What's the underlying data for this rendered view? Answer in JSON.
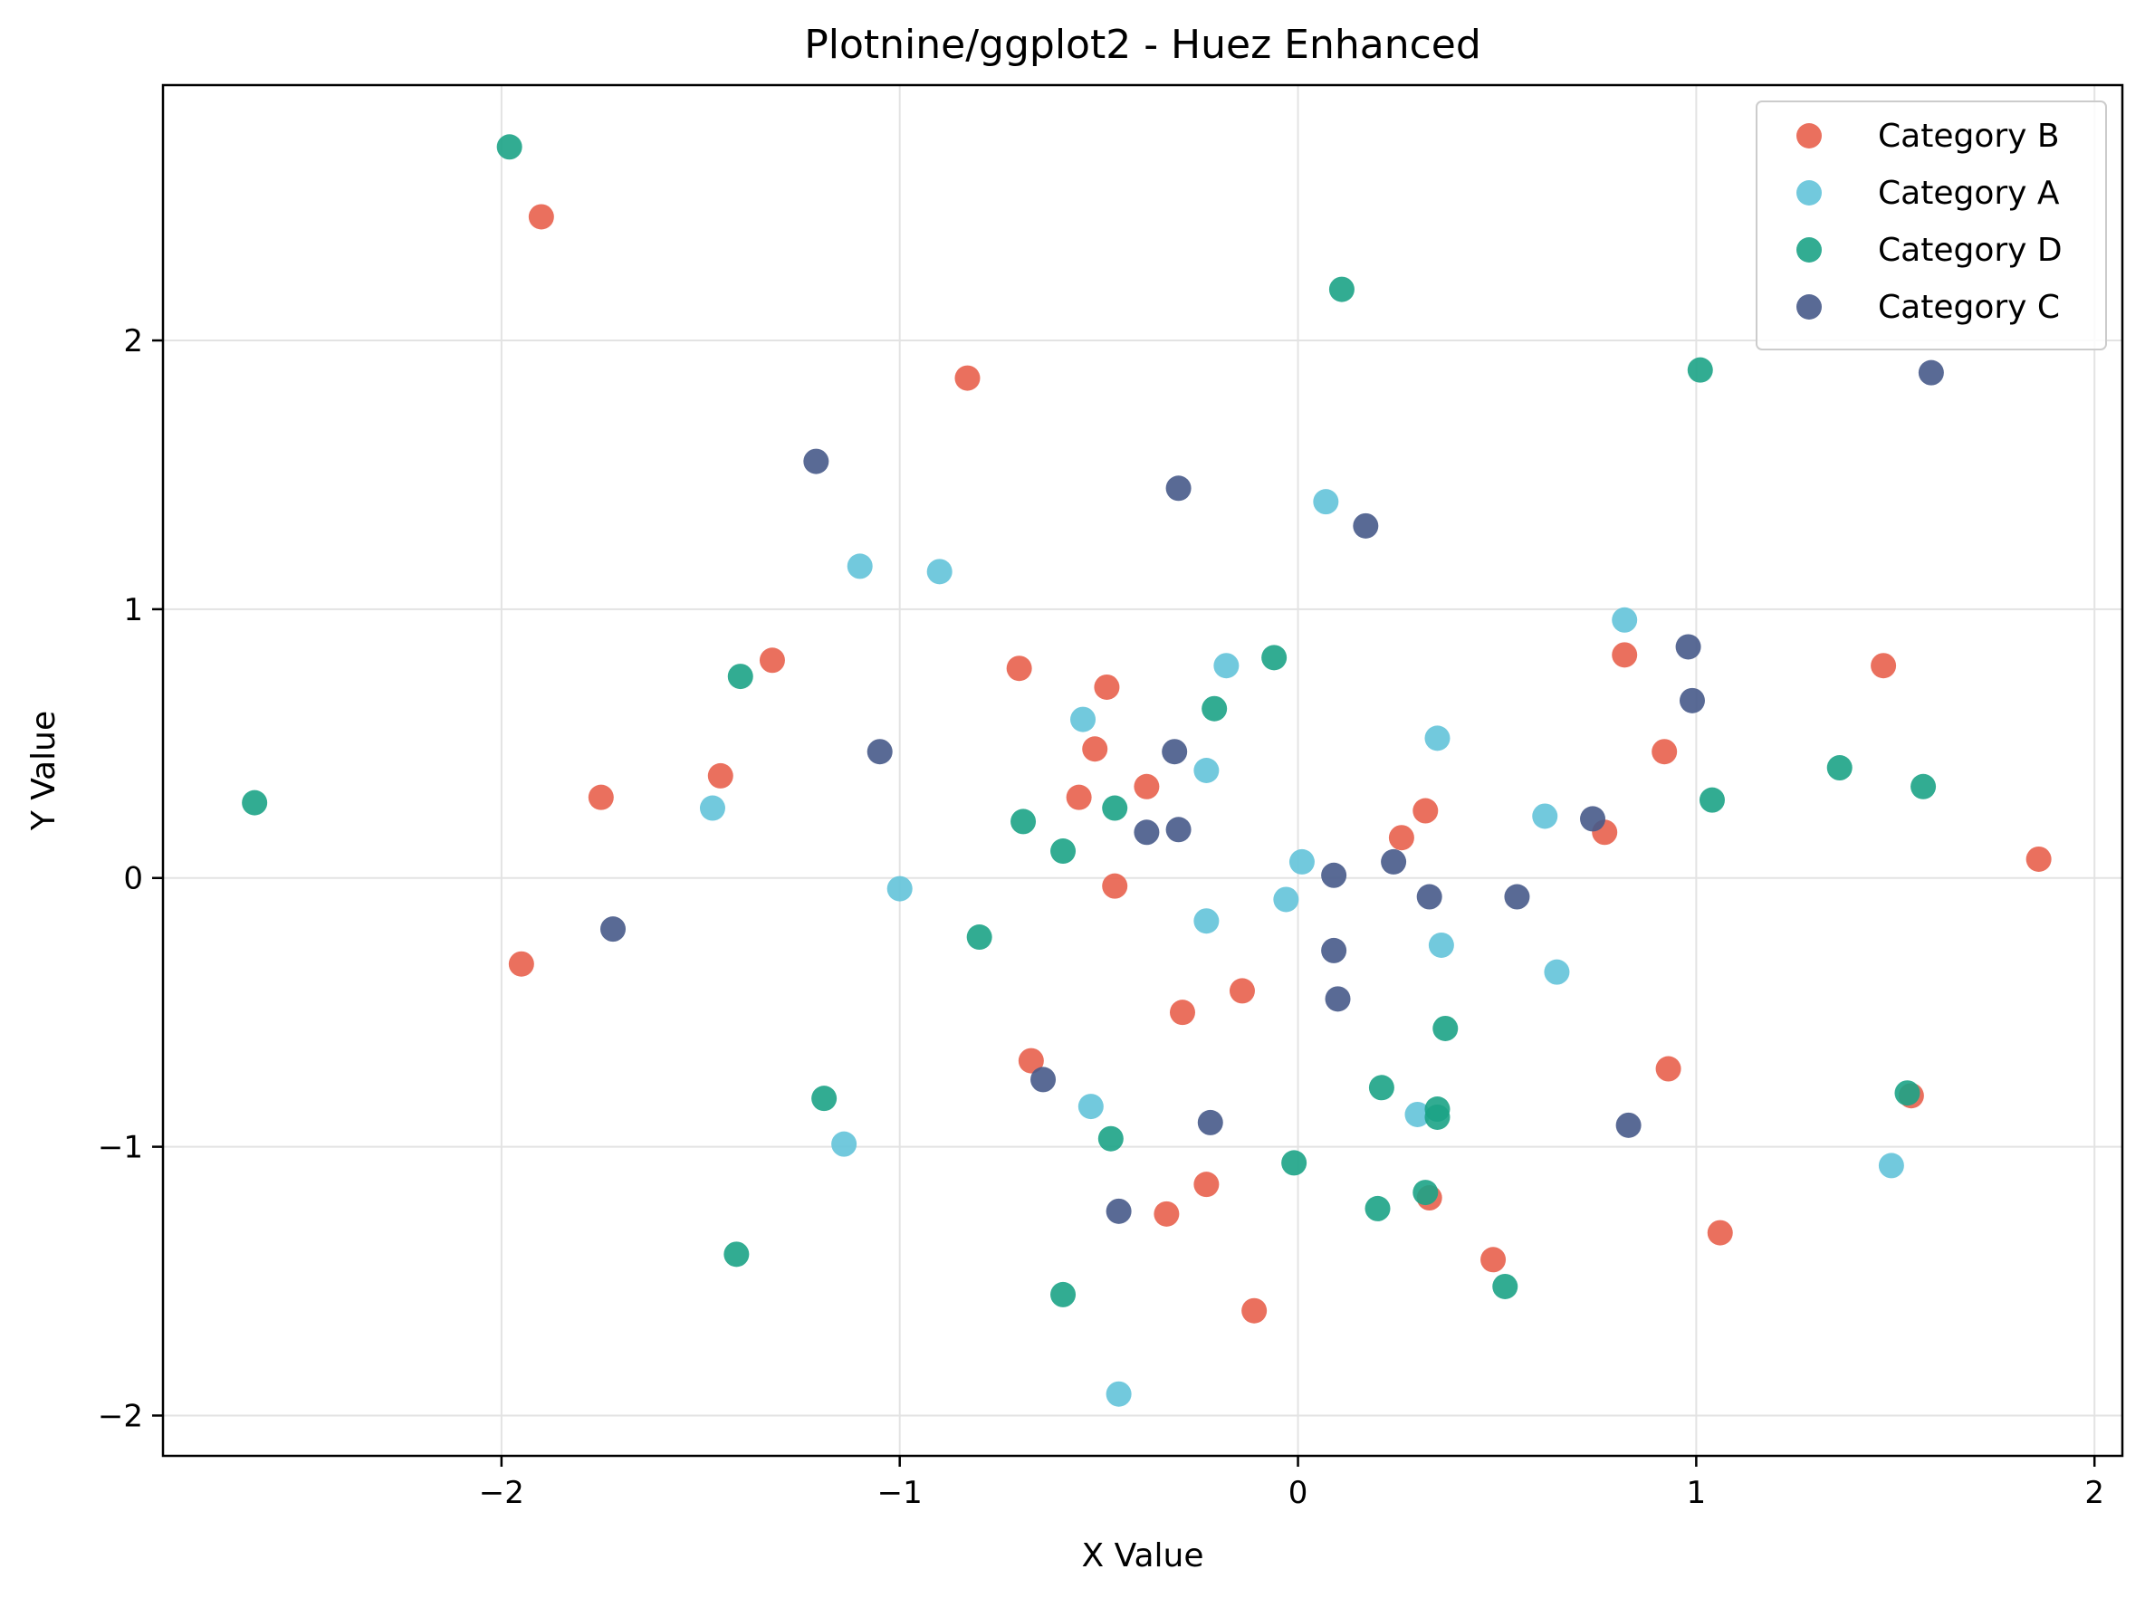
{
  "chart_data": {
    "type": "scatter",
    "title": "Plotnine/ggplot2 - Huez Enhanced",
    "xlabel": "X Value",
    "ylabel": "Y Value",
    "xlim": [
      -2.85,
      2.07
    ],
    "ylim": [
      -2.15,
      2.95
    ],
    "xticks": [
      -2,
      -1,
      0,
      1,
      2
    ],
    "yticks": [
      -2,
      -1,
      0,
      1,
      2
    ],
    "xtick_labels": [
      "−2",
      "−1",
      "0",
      "1",
      "2"
    ],
    "ytick_labels": [
      "−2",
      "−1",
      "0",
      "1",
      "2"
    ],
    "grid": true,
    "legend_position": "top-right",
    "series": [
      {
        "name": "Category B",
        "color": "#e8604c",
        "points": [
          [
            -1.9,
            2.46
          ],
          [
            -0.83,
            1.86
          ],
          [
            -1.32,
            0.81
          ],
          [
            -0.7,
            0.78
          ],
          [
            -0.48,
            0.71
          ],
          [
            -1.45,
            0.38
          ],
          [
            -1.75,
            0.3
          ],
          [
            -0.51,
            0.48
          ],
          [
            -0.55,
            0.3
          ],
          [
            -0.38,
            0.34
          ],
          [
            -0.46,
            -0.03
          ],
          [
            -1.95,
            -0.32
          ],
          [
            -0.14,
            -0.42
          ],
          [
            -0.29,
            -0.5
          ],
          [
            -0.67,
            -0.68
          ],
          [
            -0.23,
            -1.14
          ],
          [
            -0.33,
            -1.25
          ],
          [
            -0.11,
            -1.61
          ],
          [
            0.26,
            0.15
          ],
          [
            0.32,
            0.25
          ],
          [
            0.77,
            0.17
          ],
          [
            0.82,
            0.83
          ],
          [
            0.92,
            0.47
          ],
          [
            0.93,
            -0.71
          ],
          [
            0.33,
            -1.19
          ],
          [
            0.49,
            -1.42
          ],
          [
            1.06,
            -1.32
          ],
          [
            1.47,
            0.79
          ],
          [
            1.54,
            -0.81
          ],
          [
            1.86,
            0.07
          ]
        ]
      },
      {
        "name": "Category A",
        "color": "#63c3d9",
        "points": [
          [
            -1.1,
            1.16
          ],
          [
            -0.9,
            1.14
          ],
          [
            -1.47,
            0.26
          ],
          [
            -1.0,
            -0.04
          ],
          [
            -0.54,
            0.59
          ],
          [
            -0.18,
            0.79
          ],
          [
            -0.23,
            0.4
          ],
          [
            -0.23,
            -0.16
          ],
          [
            -0.52,
            -0.85
          ],
          [
            -1.14,
            -0.99
          ],
          [
            -0.45,
            -1.92
          ],
          [
            0.07,
            1.4
          ],
          [
            0.01,
            0.06
          ],
          [
            -0.03,
            -0.08
          ],
          [
            0.35,
            0.52
          ],
          [
            0.36,
            -0.25
          ],
          [
            0.3,
            -0.88
          ],
          [
            0.62,
            0.23
          ],
          [
            0.65,
            -0.35
          ],
          [
            0.82,
            0.96
          ],
          [
            1.49,
            -1.07
          ]
        ]
      },
      {
        "name": "Category D",
        "color": "#1ca386",
        "points": [
          [
            -1.98,
            2.72
          ],
          [
            -1.4,
            0.75
          ],
          [
            -2.62,
            0.28
          ],
          [
            -0.69,
            0.21
          ],
          [
            -0.59,
            0.1
          ],
          [
            -0.46,
            0.26
          ],
          [
            -0.21,
            0.63
          ],
          [
            -0.06,
            0.82
          ],
          [
            -0.8,
            -0.22
          ],
          [
            -1.19,
            -0.82
          ],
          [
            -0.47,
            -0.97
          ],
          [
            -1.41,
            -1.4
          ],
          [
            -0.59,
            -1.55
          ],
          [
            0.11,
            2.19
          ],
          [
            -0.01,
            -1.06
          ],
          [
            0.37,
            -0.56
          ],
          [
            0.21,
            -0.78
          ],
          [
            0.35,
            -0.86
          ],
          [
            0.35,
            -0.89
          ],
          [
            0.2,
            -1.23
          ],
          [
            0.32,
            -1.17
          ],
          [
            0.52,
            -1.52
          ],
          [
            1.01,
            1.89
          ],
          [
            1.04,
            0.29
          ],
          [
            1.36,
            0.41
          ],
          [
            1.57,
            0.34
          ],
          [
            1.53,
            -0.8
          ]
        ]
      },
      {
        "name": "Category C",
        "color": "#475a8a",
        "points": [
          [
            -1.21,
            1.55
          ],
          [
            -0.3,
            1.45
          ],
          [
            -1.05,
            0.47
          ],
          [
            -0.31,
            0.47
          ],
          [
            -0.38,
            0.17
          ],
          [
            -0.3,
            0.18
          ],
          [
            -1.72,
            -0.19
          ],
          [
            -0.64,
            -0.75
          ],
          [
            -0.22,
            -0.91
          ],
          [
            -0.45,
            -1.24
          ],
          [
            0.17,
            1.31
          ],
          [
            0.09,
            0.01
          ],
          [
            0.24,
            0.06
          ],
          [
            0.33,
            -0.07
          ],
          [
            0.55,
            -0.07
          ],
          [
            0.09,
            -0.27
          ],
          [
            0.1,
            -0.45
          ],
          [
            0.74,
            0.22
          ],
          [
            0.98,
            0.86
          ],
          [
            0.99,
            0.66
          ],
          [
            0.83,
            -0.92
          ],
          [
            1.59,
            1.88
          ]
        ]
      }
    ]
  }
}
